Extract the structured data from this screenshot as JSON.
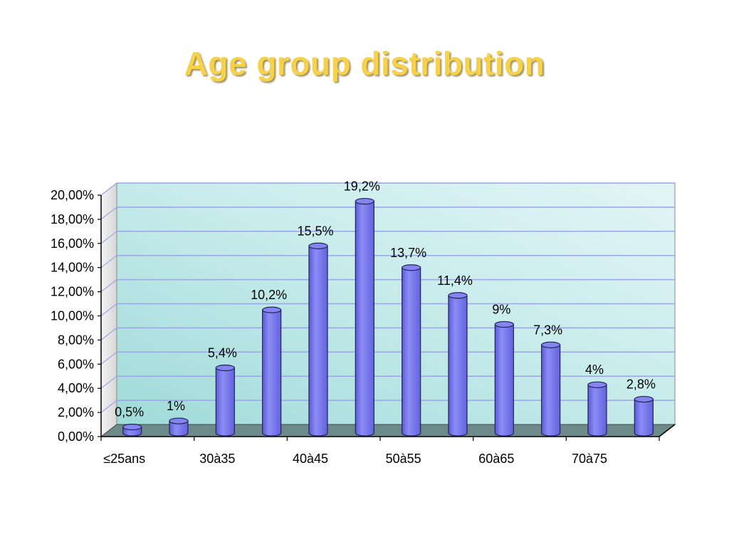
{
  "chart_data": {
    "type": "bar",
    "title": "Age group distribution",
    "bar_color": "#7777ee",
    "title_color": "#f5d24a",
    "ylim": [
      0,
      20
    ],
    "y_ticks": [
      "0,00%",
      "2,00%",
      "4,00%",
      "6,00%",
      "8,00%",
      "10,00%",
      "12,00%",
      "14,00%",
      "16,00%",
      "18,00%",
      "20,00%"
    ],
    "x_tick_labels": [
      "≤25ans",
      "30à35",
      "40à45",
      "50à55",
      "60à65",
      "70à75"
    ],
    "values": [
      0.5,
      1,
      5.4,
      10.2,
      15.5,
      19.2,
      13.7,
      11.4,
      9,
      7.3,
      4,
      2.8
    ],
    "data_labels": [
      "0,5%",
      "1%",
      "5,4%",
      "10,2%",
      "15,5%",
      "19,2%",
      "13,7%",
      "11,4%",
      "9%",
      "7,3%",
      "4%",
      "2,8%"
    ],
    "grid": true
  }
}
